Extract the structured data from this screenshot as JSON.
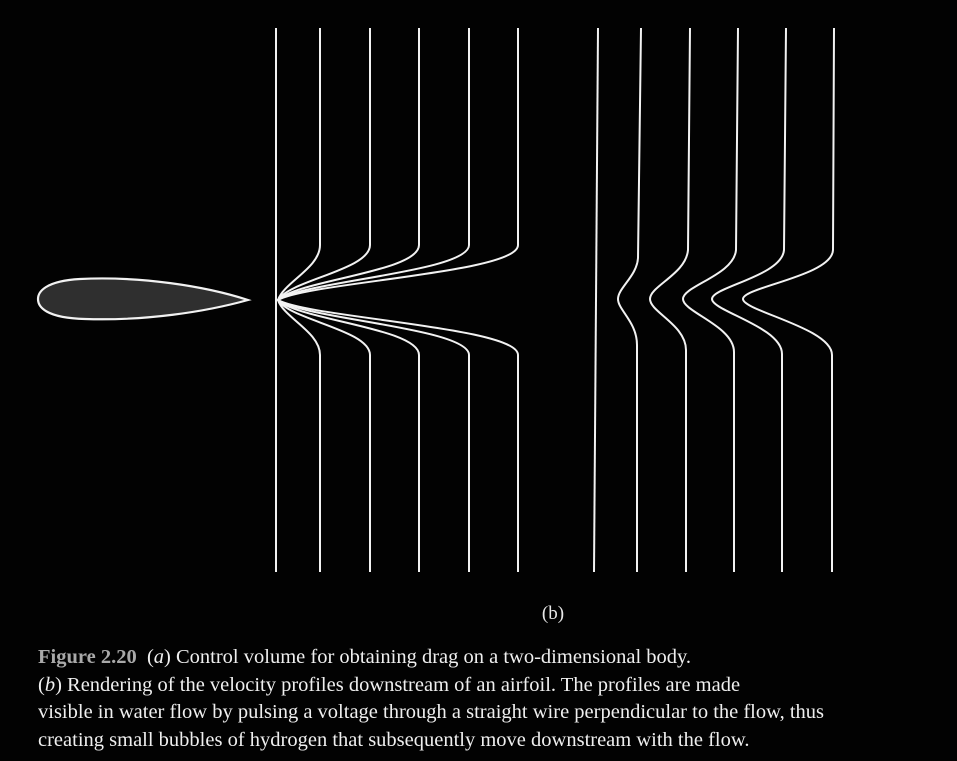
{
  "figure": {
    "subfigure_label_open": "(",
    "subfigure_label_letter": "b",
    "subfigure_label_close": ")"
  },
  "caption": {
    "number": "Figure 2.20",
    "part_a_letter": "a",
    "part_a_text": " Control volume for obtaining drag on a two-dimensional body.",
    "part_b_letter": "b",
    "part_b_text_line1": " Rendering of the velocity profiles downstream of an airfoil. The profiles are made",
    "line2": "visible in water flow by pulsing a voltage through a straight wire perpendicular to the flow, thus",
    "line3": "creating small bubbles of hydrogen that subsequently move downstream with the flow."
  },
  "colors": {
    "background": "#020202",
    "line": "#f2f2f2",
    "airfoil_fill": "#2f2f2f",
    "caption_number": "#a9a9a9"
  }
}
